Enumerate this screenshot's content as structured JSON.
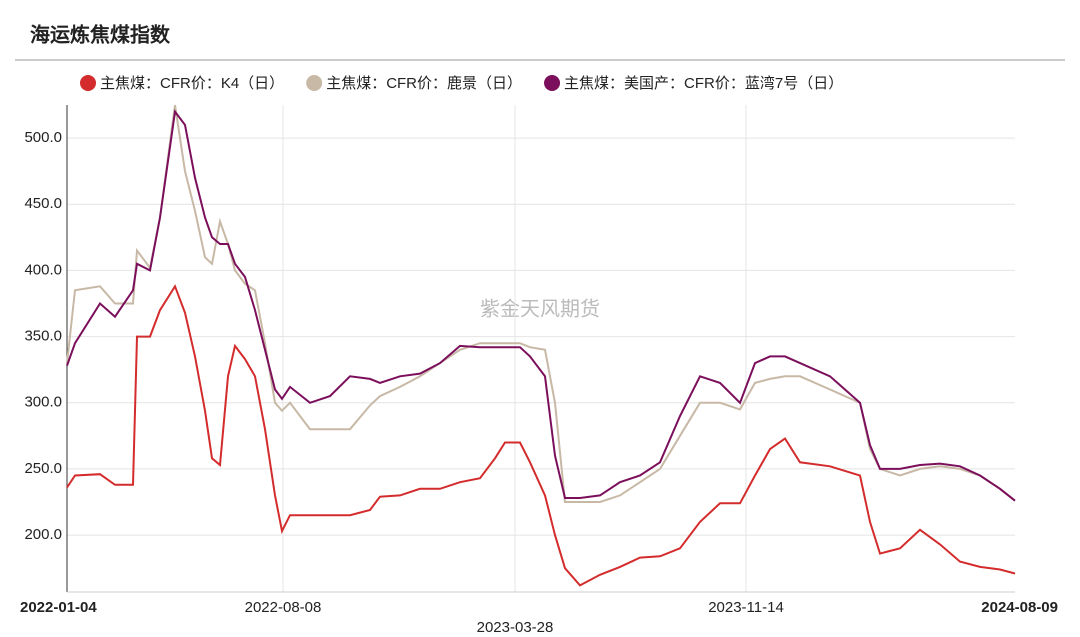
{
  "chart_data": {
    "type": "line",
    "title": "海运炼焦煤指数",
    "watermark": "紫金天风期货",
    "x": [
      "2022-01-04",
      "2022-01-12",
      "2022-02-06",
      "2022-02-21",
      "2022-03-11",
      "2022-03-15",
      "2022-03-28",
      "2022-04-07",
      "2022-04-22",
      "2022-05-02",
      "2022-05-12",
      "2022-05-22",
      "2022-05-29",
      "2022-06-06",
      "2022-06-14",
      "2022-06-21",
      "2022-07-01",
      "2022-07-11",
      "2022-07-21",
      "2022-07-31",
      "2022-08-07",
      "2022-08-15",
      "2022-09-04",
      "2022-09-24",
      "2022-10-14",
      "2022-11-03",
      "2022-11-13",
      "2022-12-03",
      "2022-12-23",
      "2023-01-12",
      "2023-02-01",
      "2023-02-21",
      "2023-03-08",
      "2023-03-18",
      "2023-04-02",
      "2023-04-12",
      "2023-04-27",
      "2023-05-07",
      "2023-05-17",
      "2023-06-01",
      "2023-06-21",
      "2023-07-11",
      "2023-07-31",
      "2023-08-20",
      "2023-09-09",
      "2023-09-29",
      "2023-10-19",
      "2023-11-08",
      "2023-11-23",
      "2023-12-08",
      "2023-12-23",
      "2024-01-07",
      "2024-02-06",
      "2024-03-07",
      "2024-03-17",
      "2024-03-27",
      "2024-04-16",
      "2024-05-06",
      "2024-05-26",
      "2024-06-15",
      "2024-07-05",
      "2024-07-25",
      "2024-08-09"
    ],
    "series": [
      {
        "name": "主焦煤：CFR价：K4（日）",
        "color": "#d42c2c",
        "values": [
          236,
          245,
          246,
          238,
          238,
          350,
          350,
          370,
          388,
          368,
          335,
          294,
          258,
          253,
          320,
          343,
          333,
          320,
          280,
          230,
          203,
          215,
          215,
          215,
          215,
          219,
          229,
          230,
          235,
          235,
          240,
          243,
          258,
          270,
          270,
          255,
          230,
          200,
          175,
          162,
          170,
          176,
          183,
          184,
          190,
          210,
          224,
          224,
          245,
          265,
          273,
          255,
          252,
          245,
          210,
          186,
          190,
          204,
          193,
          180,
          176,
          174,
          171
        ]
      },
      {
        "name": "主焦煤：CFR价：鹿景（日）",
        "color": "#c8b8a6",
        "values": [
          330,
          385,
          388,
          375,
          375,
          415,
          402,
          440,
          525,
          475,
          445,
          410,
          405,
          437,
          420,
          400,
          390,
          385,
          345,
          300,
          294,
          300,
          280,
          280,
          280,
          298,
          305,
          312,
          320,
          330,
          340,
          345,
          345,
          345,
          345,
          342,
          340,
          300,
          225,
          225,
          225,
          230,
          240,
          250,
          275,
          300,
          300,
          295,
          315,
          318,
          320,
          320,
          310,
          300,
          265,
          250,
          245,
          250,
          252,
          250,
          245,
          235,
          226
        ]
      },
      {
        "name": "主焦煤：美国产：CFR价：蓝湾7号（日）",
        "color": "#7b0f5b",
        "values": [
          328,
          345,
          375,
          365,
          385,
          405,
          400,
          440,
          520,
          510,
          470,
          440,
          425,
          420,
          420,
          405,
          395,
          370,
          340,
          310,
          303,
          312,
          300,
          305,
          320,
          318,
          315,
          320,
          322,
          330,
          343,
          342,
          342,
          342,
          342,
          335,
          320,
          260,
          228,
          228,
          230,
          240,
          245,
          255,
          290,
          320,
          315,
          300,
          330,
          335,
          335,
          330,
          320,
          300,
          268,
          250,
          250,
          253,
          254,
          252,
          245,
          235,
          226
        ]
      }
    ],
    "ylim": [
      157,
      525
    ],
    "yticks": [
      {
        "value": 200,
        "label": "200.0"
      },
      {
        "value": 250,
        "label": "250.0"
      },
      {
        "value": 300,
        "label": "300.0"
      },
      {
        "value": 350,
        "label": "350.0"
      },
      {
        "value": 400,
        "label": "400.0"
      },
      {
        "value": 450,
        "label": "450.0"
      },
      {
        "value": 500,
        "label": "500.0"
      }
    ],
    "xticks": [
      "2022-01-04",
      "2022-08-08",
      "2023-03-28",
      "2023-11-14",
      "2024-08-09"
    ],
    "grid": true
  }
}
